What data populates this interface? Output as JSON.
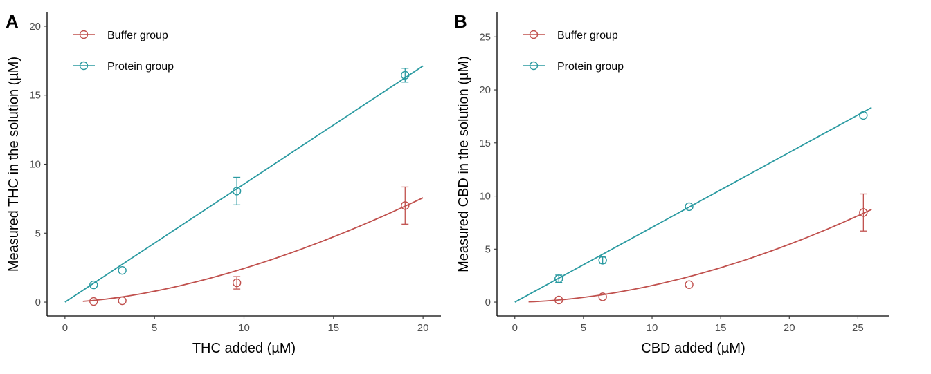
{
  "colors": {
    "buffer": "#c0504d",
    "protein": "#2a9aa1"
  },
  "chart_data": [
    {
      "type": "scatter",
      "panel": "A",
      "xlabel": "THC added (µM)",
      "ylabel": "Measured THC in the solution (µM)",
      "xlim": [
        -1,
        21
      ],
      "ylim": [
        -1,
        21
      ],
      "xticks": [
        0,
        5,
        10,
        15,
        20
      ],
      "yticks": [
        0,
        5,
        10,
        15,
        20
      ],
      "legend_position": "top-left",
      "series": [
        {
          "name": "Buffer group",
          "color_key": "buffer",
          "points": [
            {
              "x": 1.6,
              "y": 0.05,
              "err": 0
            },
            {
              "x": 3.2,
              "y": 0.1,
              "err": 0
            },
            {
              "x": 9.6,
              "y": 1.4,
              "err": 0.45
            },
            {
              "x": 19.0,
              "y": 7.0,
              "err": 1.35
            }
          ],
          "fit": {
            "kind": "power",
            "a": 0.0573,
            "b": 1.63,
            "x_from": 1.0,
            "x_to": 20.0
          }
        },
        {
          "name": "Protein group",
          "color_key": "protein",
          "points": [
            {
              "x": 1.6,
              "y": 1.25,
              "err": 0
            },
            {
              "x": 3.2,
              "y": 2.3,
              "err": 0
            },
            {
              "x": 9.6,
              "y": 8.05,
              "err": 1.0
            },
            {
              "x": 19.0,
              "y": 16.45,
              "err": 0.5
            }
          ],
          "fit": {
            "kind": "linear",
            "slope": 0.856,
            "intercept": 0.0,
            "x_from": 0.0,
            "x_to": 20.0
          }
        }
      ]
    },
    {
      "type": "scatter",
      "panel": "B",
      "xlabel": "CBD added (µM)",
      "ylabel": "Measured CBD in the solution (µM)",
      "xlim": [
        -1.3,
        27.3
      ],
      "ylim": [
        -1.3,
        27.3
      ],
      "xticks": [
        0,
        5,
        10,
        15,
        20,
        25
      ],
      "yticks": [
        0,
        5,
        10,
        15,
        20,
        25
      ],
      "legend_position": "top-left",
      "series": [
        {
          "name": "Buffer group",
          "color_key": "buffer",
          "points": [
            {
              "x": 3.2,
              "y": 0.2,
              "err": 0
            },
            {
              "x": 6.4,
              "y": 0.5,
              "err": 0
            },
            {
              "x": 12.7,
              "y": 1.65,
              "err": 0
            },
            {
              "x": 25.4,
              "y": 8.45,
              "err": 1.75
            }
          ],
          "fit": {
            "kind": "power",
            "a": 0.0248,
            "b": 1.8,
            "x_from": 1.0,
            "x_to": 26.0
          }
        },
        {
          "name": "Protein group",
          "color_key": "protein",
          "points": [
            {
              "x": 3.2,
              "y": 2.2,
              "err": 0.35
            },
            {
              "x": 6.4,
              "y": 3.95,
              "err": 0.3
            },
            {
              "x": 12.7,
              "y": 9.0,
              "err": 0
            },
            {
              "x": 25.4,
              "y": 17.6,
              "err": 0
            }
          ],
          "fit": {
            "kind": "linear",
            "slope": 0.7053,
            "intercept": 0.0,
            "x_from": 0.0,
            "x_to": 26.0
          }
        }
      ]
    }
  ]
}
